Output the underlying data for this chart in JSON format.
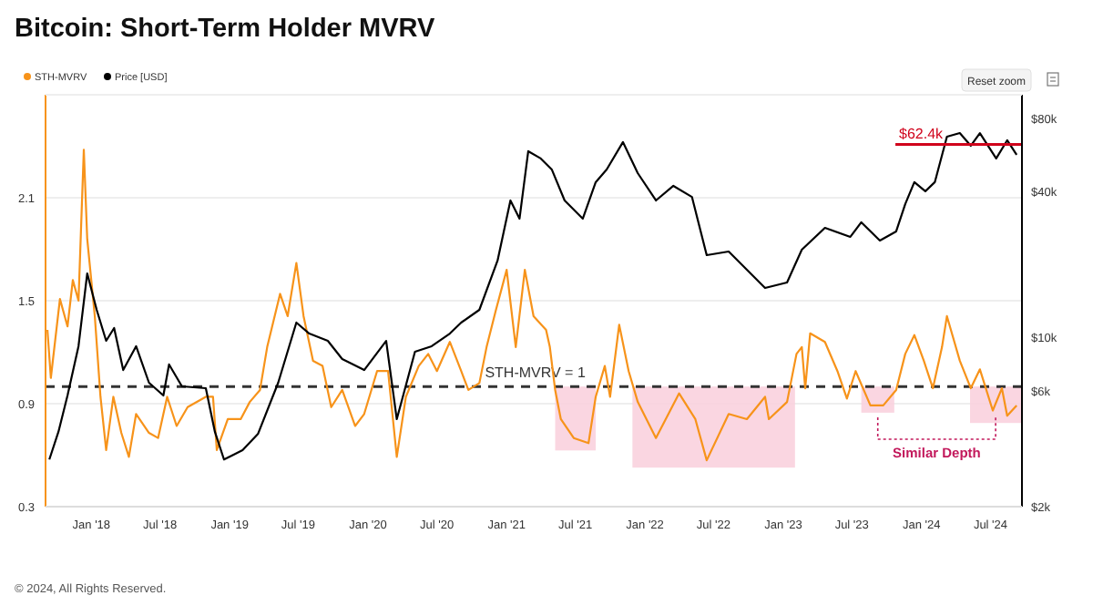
{
  "chart_data": {
    "type": "line",
    "title": "Bitcoin: Short-Term Holder MVRV",
    "xlim": [
      "2017-09-02",
      "2024-09-22"
    ],
    "xticks": [
      {
        "value": "2018-01-01",
        "label": "Jan '18"
      },
      {
        "value": "2018-07-01",
        "label": "Jul '18"
      },
      {
        "value": "2019-01-01",
        "label": "Jan '19"
      },
      {
        "value": "2019-07-01",
        "label": "Jul '19"
      },
      {
        "value": "2020-01-01",
        "label": "Jan '20"
      },
      {
        "value": "2020-07-01",
        "label": "Jul '20"
      },
      {
        "value": "2021-01-01",
        "label": "Jan '21"
      },
      {
        "value": "2021-07-01",
        "label": "Jul '21"
      },
      {
        "value": "2022-01-01",
        "label": "Jan '22"
      },
      {
        "value": "2022-07-01",
        "label": "Jul '22"
      },
      {
        "value": "2023-01-01",
        "label": "Jan '23"
      },
      {
        "value": "2023-07-01",
        "label": "Jul '23"
      },
      {
        "value": "2024-01-01",
        "label": "Jan '24"
      },
      {
        "value": "2024-07-01",
        "label": "Jul '24"
      }
    ],
    "ylim": [
      0.3,
      2.7
    ],
    "yticks": [
      0.3,
      0.9,
      1.5,
      2.1
    ],
    "y2lim": [
      2000,
      100000
    ],
    "y2ticks": [
      {
        "value": 2000,
        "label": "$2k"
      },
      {
        "value": 6000,
        "label": "$6k"
      },
      {
        "value": 10000,
        "label": "$10k"
      },
      {
        "value": 40000,
        "label": "$40k"
      },
      {
        "value": 80000,
        "label": "$80k"
      }
    ],
    "log": "y2",
    "grid": "y",
    "legend": "top left",
    "series": [
      {
        "name": "STH-MVRV",
        "color": "#f7931a",
        "x": [
          "2017-09-07",
          "2017-09-16",
          "2017-10-10",
          "2017-10-30",
          "2017-11-13",
          "2017-11-28",
          "2017-12-12",
          "2017-12-21",
          "2018-01-10",
          "2018-01-25",
          "2018-02-09",
          "2018-02-28",
          "2018-03-21",
          "2018-04-10",
          "2018-04-29",
          "2018-06-02",
          "2018-06-26",
          "2018-07-20",
          "2018-08-14",
          "2018-09-12",
          "2018-10-30",
          "2018-11-18",
          "2018-11-28",
          "2018-12-27",
          "2019-01-30",
          "2019-02-23",
          "2019-03-22",
          "2019-04-10",
          "2019-05-14",
          "2019-06-03",
          "2019-06-26",
          "2019-07-15",
          "2019-08-09",
          "2019-09-03",
          "2019-09-26",
          "2019-10-25",
          "2019-11-28",
          "2019-12-22",
          "2020-01-25",
          "2020-02-23",
          "2020-03-17",
          "2020-04-10",
          "2020-05-14",
          "2020-06-08",
          "2020-07-01",
          "2020-08-04",
          "2020-09-03",
          "2020-09-22",
          "2020-10-21",
          "2020-11-09",
          "2020-12-03",
          "2021-01-01",
          "2021-01-25",
          "2021-02-18",
          "2021-03-13",
          "2021-04-15",
          "2021-04-25",
          "2021-05-09",
          "2021-05-24",
          "2021-06-27",
          "2021-08-05",
          "2021-08-24",
          "2021-09-17",
          "2021-10-01",
          "2021-10-25",
          "2021-11-19",
          "2021-12-13",
          "2022-01-30",
          "2022-04-01",
          "2022-05-14",
          "2022-06-13",
          "2022-08-10",
          "2022-09-27",
          "2022-11-14",
          "2022-11-24",
          "2023-01-11",
          "2023-02-05",
          "2023-02-19",
          "2023-02-28",
          "2023-03-13",
          "2023-04-21",
          "2023-05-24",
          "2023-06-18",
          "2023-07-11",
          "2023-08-19",
          "2023-09-22",
          "2023-10-26",
          "2023-11-19",
          "2023-12-13",
          "2024-01-07",
          "2024-01-31",
          "2024-02-24",
          "2024-03-08",
          "2024-04-11",
          "2024-05-10",
          "2024-06-03",
          "2024-07-07",
          "2024-07-31",
          "2024-08-14",
          "2024-09-08"
        ],
        "values": [
          1.33,
          1.05,
          1.51,
          1.35,
          1.62,
          1.5,
          2.38,
          1.86,
          1.41,
          0.94,
          0.63,
          0.94,
          0.73,
          0.59,
          0.84,
          0.73,
          0.7,
          0.94,
          0.77,
          0.88,
          0.94,
          0.94,
          0.63,
          0.81,
          0.81,
          0.91,
          0.98,
          1.23,
          1.54,
          1.41,
          1.72,
          1.41,
          1.15,
          1.12,
          0.88,
          0.98,
          0.77,
          0.84,
          1.09,
          1.09,
          0.59,
          0.94,
          1.12,
          1.19,
          1.09,
          1.26,
          1.09,
          0.98,
          1.02,
          1.23,
          1.44,
          1.68,
          1.23,
          1.68,
          1.41,
          1.33,
          1.23,
          0.98,
          0.81,
          0.7,
          0.67,
          0.94,
          1.12,
          0.94,
          1.36,
          1.09,
          0.91,
          0.7,
          0.96,
          0.81,
          0.57,
          0.84,
          0.81,
          0.94,
          0.81,
          0.91,
          1.19,
          1.23,
          0.99,
          1.31,
          1.26,
          1.09,
          0.93,
          1.09,
          0.89,
          0.89,
          0.98,
          1.19,
          1.3,
          1.15,
          0.99,
          1.23,
          1.41,
          1.15,
          0.99,
          1.1,
          0.86,
          0.99,
          0.83,
          0.89
        ]
      },
      {
        "name": "Price [USD]",
        "color": "#000000",
        "axis": "y2",
        "x": [
          "2017-09-12",
          "2017-10-06",
          "2017-10-30",
          "2017-11-28",
          "2017-12-21",
          "2018-01-15",
          "2018-02-09",
          "2018-03-02",
          "2018-03-26",
          "2018-04-29",
          "2018-06-02",
          "2018-07-10",
          "2018-07-25",
          "2018-08-28",
          "2018-10-30",
          "2018-11-23",
          "2018-12-17",
          "2019-02-04",
          "2019-03-17",
          "2019-05-09",
          "2019-06-26",
          "2019-07-30",
          "2019-09-17",
          "2019-10-25",
          "2019-12-22",
          "2020-02-18",
          "2020-03-17",
          "2020-05-04",
          "2020-06-17",
          "2020-08-04",
          "2020-09-03",
          "2020-10-21",
          "2020-12-08",
          "2021-01-11",
          "2021-02-04",
          "2021-02-27",
          "2021-04-01",
          "2021-04-30",
          "2021-06-03",
          "2021-07-21",
          "2021-08-24",
          "2021-09-22",
          "2021-11-04",
          "2021-12-13",
          "2022-01-30",
          "2022-03-17",
          "2022-05-05",
          "2022-06-13",
          "2022-08-10",
          "2022-09-27",
          "2022-11-14",
          "2023-01-11",
          "2023-02-19",
          "2023-04-21",
          "2023-06-27",
          "2023-07-26",
          "2023-09-13",
          "2023-10-26",
          "2023-11-19",
          "2023-12-13",
          "2024-01-11",
          "2024-02-05",
          "2024-03-08",
          "2024-04-11",
          "2024-05-10",
          "2024-06-03",
          "2024-07-16",
          "2024-08-14",
          "2024-09-08"
        ],
        "values": [
          3130,
          4070,
          5750,
          9180,
          18330,
          12970,
          9660,
          10910,
          7320,
          9180,
          6490,
          5750,
          7720,
          6270,
          6160,
          4070,
          3130,
          3420,
          4000,
          6490,
          11490,
          10350,
          9660,
          8130,
          7320,
          9660,
          4590,
          8710,
          9180,
          10350,
          11490,
          12970,
          20700,
          36650,
          30830,
          58500,
          54600,
          49200,
          36650,
          30830,
          43600,
          49200,
          63800,
          47500,
          36650,
          42100,
          37900,
          21800,
          22570,
          18980,
          15960,
          16820,
          22960,
          28250,
          25930,
          29780,
          25050,
          27310,
          35410,
          43600,
          40000,
          43600,
          67150,
          69500,
          61600,
          69500,
          54600,
          64900,
          56500
        ]
      },
      {
        "name": "$62.4k",
        "type": "line",
        "color": "#d0021b",
        "axis": "y2",
        "x": [
          "2023-10-24",
          "2024-09-22"
        ],
        "values": [
          62400,
          62400
        ]
      }
    ],
    "ref_lines": [
      {
        "axis": "y",
        "value": 1,
        "label": "STH-MVRV = 1",
        "color": "#333333",
        "line_style": "dashed"
      }
    ],
    "bands": [
      {
        "axis": "x",
        "from": "2021-05-09",
        "to": "2021-08-24",
        "color": "#f9cfdc"
      },
      {
        "axis": "x",
        "from": "2021-11-29",
        "to": "2023-02-01",
        "color": "#f9cfdc"
      },
      {
        "axis": "x",
        "from": "2023-07-26",
        "to": "2023-10-21",
        "color": "#f9cfdc"
      },
      {
        "axis": "x",
        "from": "2024-05-08",
        "to": "2024-09-20",
        "color": "#f9cfdc"
      }
    ],
    "annotations": [
      "Similar Depth",
      "© 2024, All Rights Reserved.",
      "Reset zoom"
    ]
  }
}
